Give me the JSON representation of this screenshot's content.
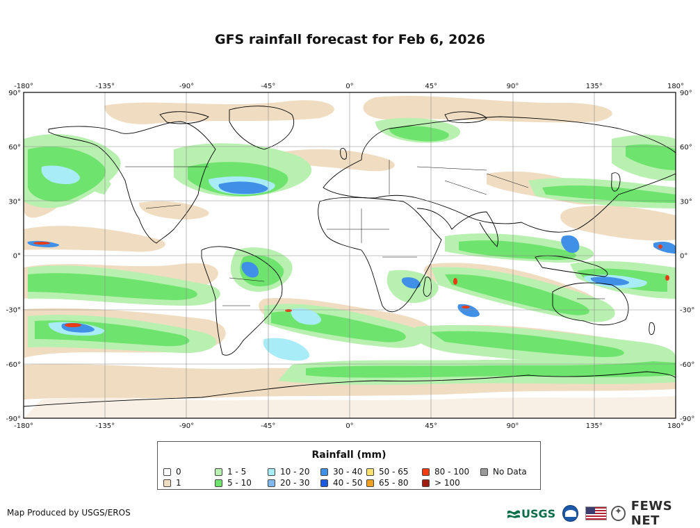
{
  "title": "GFS rainfall forecast for Feb 6, 2026",
  "map": {
    "x_ticks": [
      "-180°",
      "-135°",
      "-90°",
      "-45°",
      "0°",
      "45°",
      "90°",
      "135°",
      "180°"
    ],
    "y_ticks": [
      "90°",
      "60°",
      "30°",
      "0°",
      "-30°",
      "-60°",
      "-90°"
    ],
    "colors": {
      "ocean": "#ffffff",
      "rain_1": "#f0dcc0",
      "rain_1_5": "#a8f0a8",
      "rain_5_10": "#6ee46e",
      "rain_10_20": "#a0e8f8",
      "rain_20_30": "#7cb8f0",
      "rain_30_40": "#3c8ce8",
      "rain_40_50": "#1e50d8",
      "rain_80_100": "#e83c14",
      "coast": "#000000"
    }
  },
  "legend": {
    "title": "Rainfall (mm)",
    "items": [
      {
        "label": "0",
        "color": "#ffffff"
      },
      {
        "label": "1",
        "color": "#f0dcc0"
      },
      {
        "label": "1 - 5",
        "color": "#b8f0b0"
      },
      {
        "label": "5 - 10",
        "color": "#6ee46e"
      },
      {
        "label": "10 - 20",
        "color": "#a8ecf8"
      },
      {
        "label": "20 - 30",
        "color": "#80b8f0"
      },
      {
        "label": "30 - 40",
        "color": "#4090e8"
      },
      {
        "label": "40 - 50",
        "color": "#1e5ae0"
      },
      {
        "label": "50 - 65",
        "color": "#f8e070"
      },
      {
        "label": "65 - 80",
        "color": "#f0a020"
      },
      {
        "label": "80 - 100",
        "color": "#f03c10"
      },
      {
        "label": "> 100",
        "color": "#a01c10"
      },
      {
        "label": "No Data",
        "color": "#999999"
      }
    ]
  },
  "credit": "Map Produced by USGS/EROS",
  "logos": {
    "usgs": "USGS",
    "fews": "FEWS NET"
  }
}
